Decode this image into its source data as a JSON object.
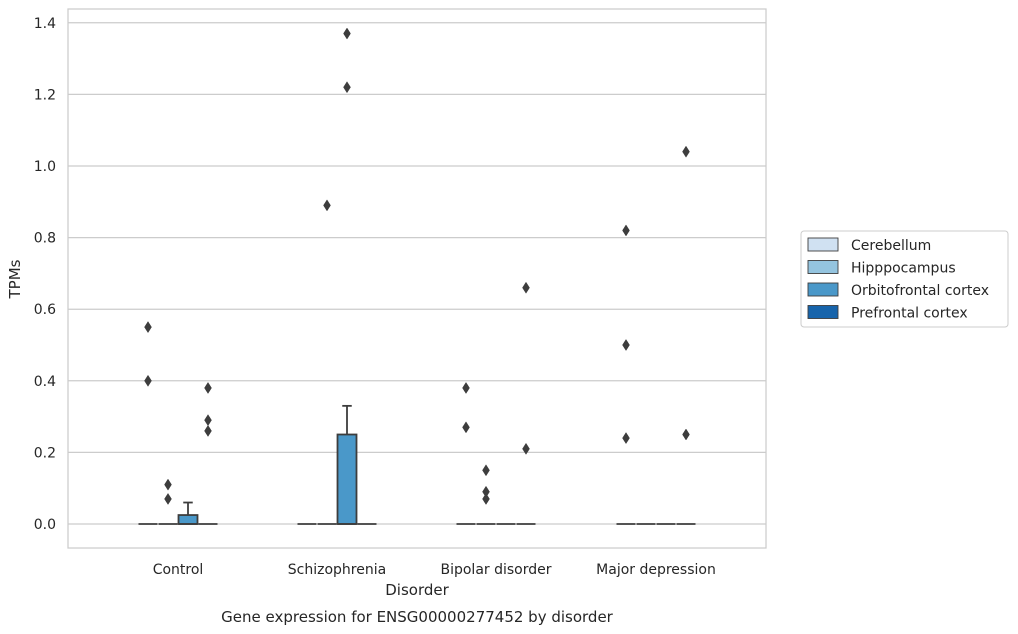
{
  "chart_data": {
    "type": "box",
    "caption": "Gene expression for ENSG00000277452 by disorder",
    "xlabel": "Disorder",
    "ylabel": "TPMs",
    "ylim": [
      -0.068,
      1.44
    ],
    "yticks": [
      0.0,
      0.2,
      0.4,
      0.6,
      0.8,
      1.0,
      1.2,
      1.4
    ],
    "ytick_labels": [
      "0.0",
      "0.2",
      "0.4",
      "0.6",
      "0.8",
      "1.0",
      "1.2",
      "1.4"
    ],
    "grid": "horizontal",
    "legend_position": "right",
    "categories": [
      "Control",
      "Schizophrenia",
      "Bipolar disorder",
      "Major depression"
    ],
    "series": [
      {
        "name": "Cerebellum",
        "color": "#d0e1f2",
        "boxes": [
          {
            "q1": 0,
            "median": 0,
            "q3": 0,
            "whisker_low": 0,
            "whisker_high": 0,
            "outliers": [
              0.55,
              0.4
            ]
          },
          {
            "q1": 0,
            "median": 0,
            "q3": 0,
            "whisker_low": 0,
            "whisker_high": 0,
            "outliers": []
          },
          {
            "q1": 0,
            "median": 0,
            "q3": 0,
            "whisker_low": 0,
            "whisker_high": 0,
            "outliers": [
              0.38,
              0.27
            ]
          },
          {
            "q1": 0,
            "median": 0,
            "q3": 0,
            "whisker_low": 0,
            "whisker_high": 0,
            "outliers": [
              0.82,
              0.5,
              0.24
            ]
          }
        ]
      },
      {
        "name": "Hipppocampus",
        "color": "#94c4df",
        "boxes": [
          {
            "q1": 0,
            "median": 0,
            "q3": 0,
            "whisker_low": 0,
            "whisker_high": 0,
            "outliers": [
              0.11,
              0.07
            ]
          },
          {
            "q1": 0,
            "median": 0,
            "q3": 0,
            "whisker_low": 0,
            "whisker_high": 0,
            "outliers": [
              0.89
            ]
          },
          {
            "q1": 0,
            "median": 0,
            "q3": 0,
            "whisker_low": 0,
            "whisker_high": 0,
            "outliers": [
              0.15,
              0.09,
              0.07
            ]
          },
          {
            "q1": 0,
            "median": 0,
            "q3": 0,
            "whisker_low": 0,
            "whisker_high": 0,
            "outliers": []
          }
        ]
      },
      {
        "name": "Orbitofrontal cortex",
        "color": "#4a98c9",
        "boxes": [
          {
            "q1": 0,
            "median": 0,
            "q3": 0.025,
            "whisker_low": 0,
            "whisker_high": 0.06,
            "outliers": []
          },
          {
            "q1": 0,
            "median": 0,
            "q3": 0.25,
            "whisker_low": 0,
            "whisker_high": 0.33,
            "outliers": [
              1.37,
              1.22
            ]
          },
          {
            "q1": 0,
            "median": 0,
            "q3": 0,
            "whisker_low": 0,
            "whisker_high": 0,
            "outliers": []
          },
          {
            "q1": 0,
            "median": 0,
            "q3": 0,
            "whisker_low": 0,
            "whisker_high": 0,
            "outliers": []
          }
        ]
      },
      {
        "name": "Prefrontal cortex",
        "color": "#1764ab",
        "boxes": [
          {
            "q1": 0,
            "median": 0,
            "q3": 0,
            "whisker_low": 0,
            "whisker_high": 0,
            "outliers": [
              0.38,
              0.29,
              0.26
            ]
          },
          {
            "q1": 0,
            "median": 0,
            "q3": 0,
            "whisker_low": 0,
            "whisker_high": 0,
            "outliers": []
          },
          {
            "q1": 0,
            "median": 0,
            "q3": 0,
            "whisker_low": 0,
            "whisker_high": 0,
            "outliers": [
              0.66,
              0.21
            ]
          },
          {
            "q1": 0,
            "median": 0,
            "q3": 0,
            "whisker_low": 0,
            "whisker_high": 0,
            "outliers": [
              1.04,
              0.25
            ]
          }
        ]
      }
    ]
  }
}
